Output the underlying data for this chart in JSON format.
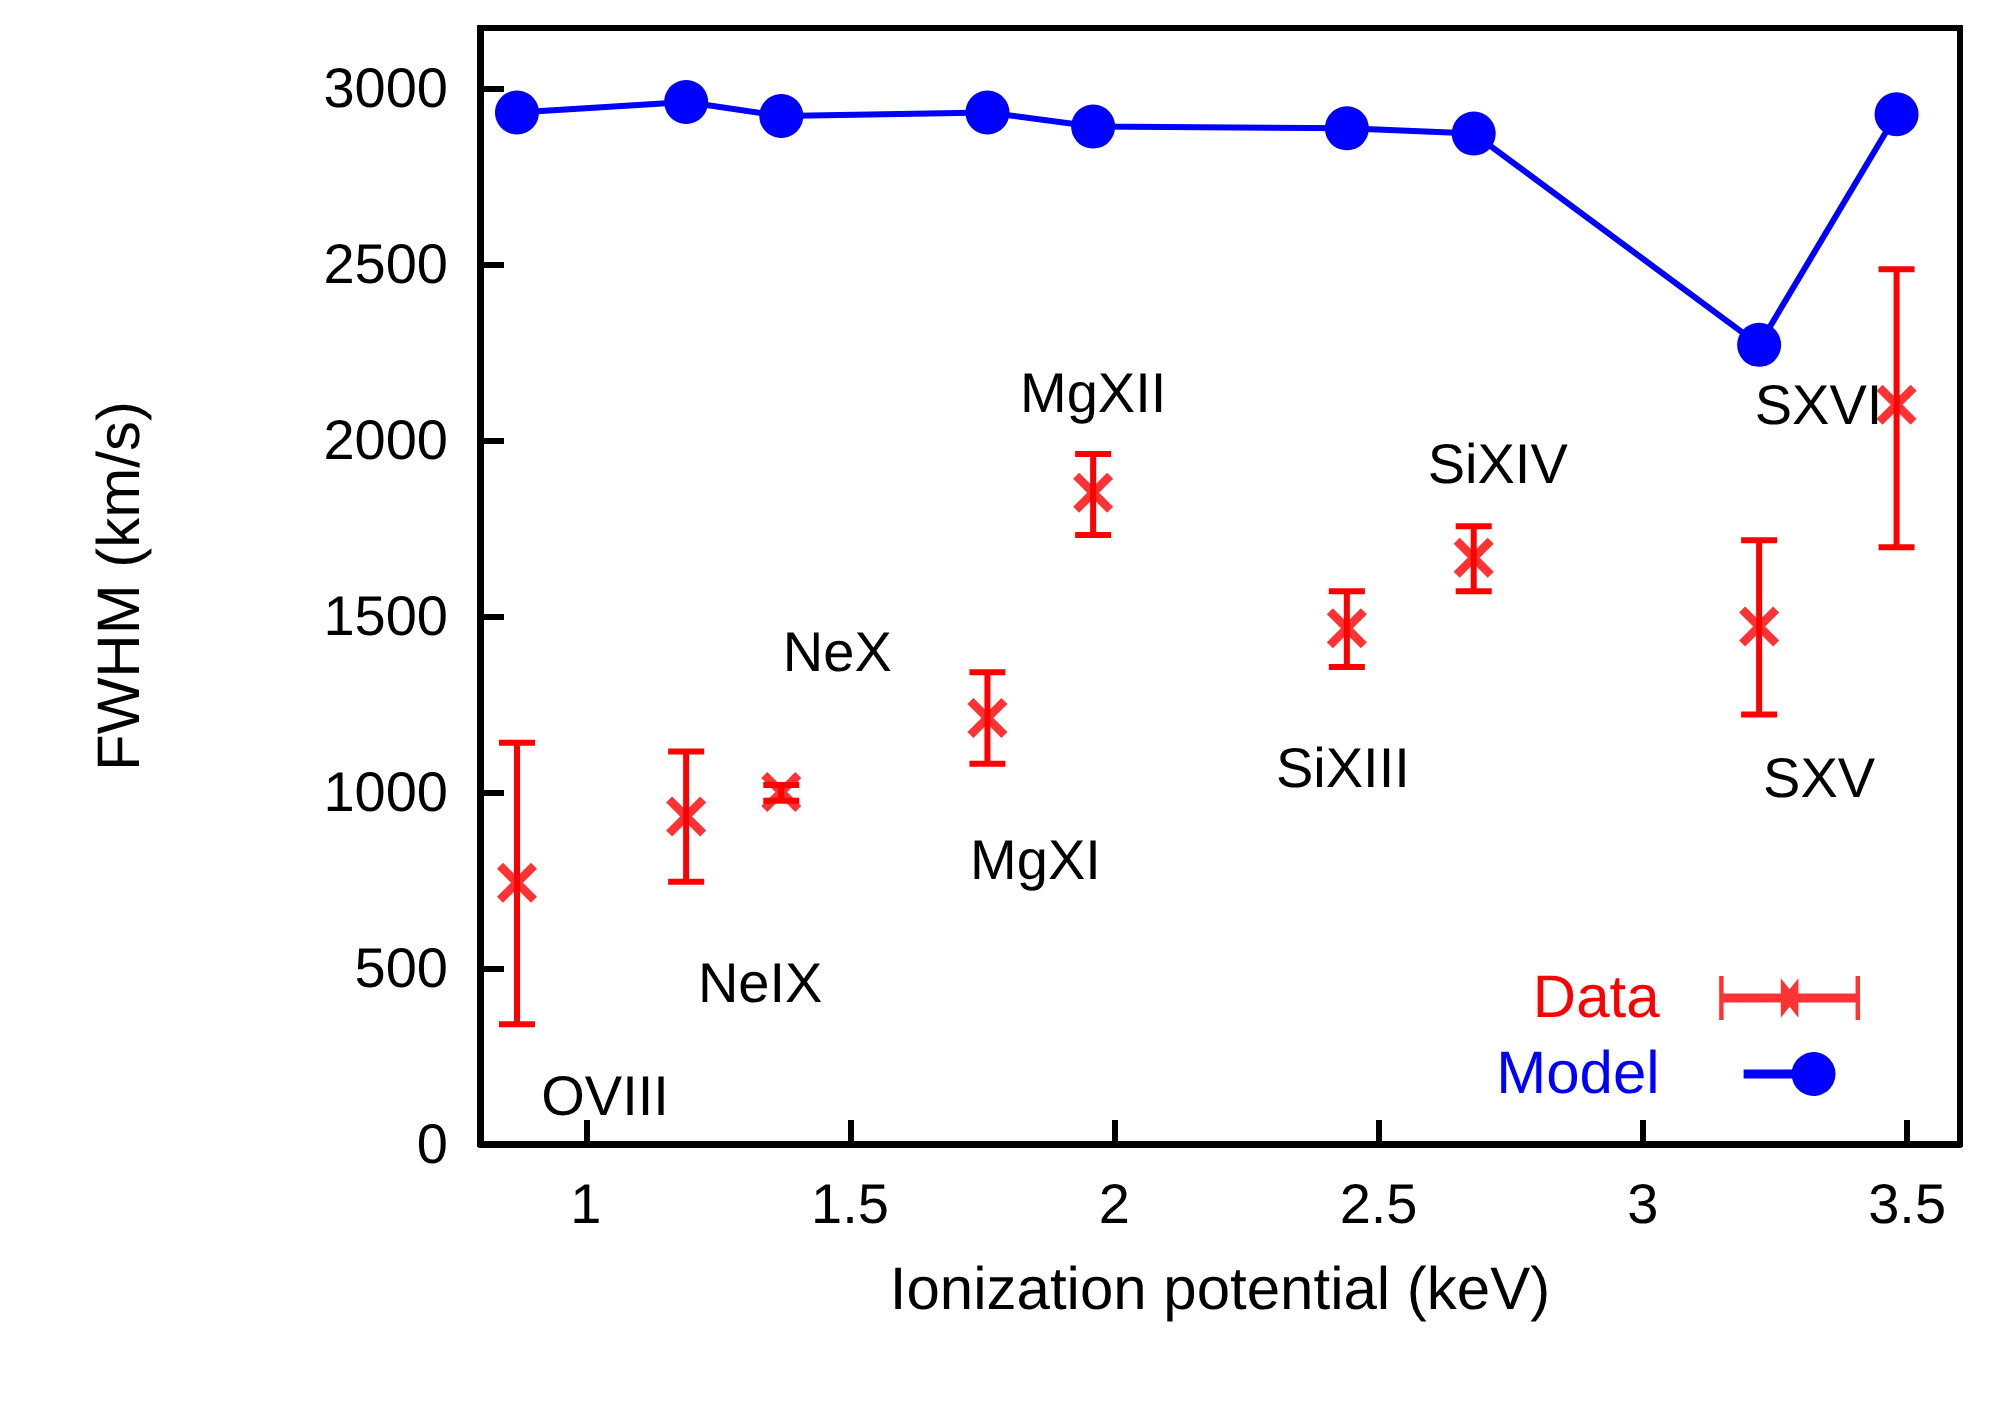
{
  "chart_data": {
    "type": "scatter",
    "xlabel": "Ionization potential (keV)",
    "ylabel": "FWHM (km/s)",
    "xlim": [
      0.8,
      3.6
    ],
    "xticks": [
      1,
      1.5,
      2,
      2.5,
      3,
      3.5
    ],
    "ylim": [
      0,
      3170
    ],
    "yticks": [
      0,
      500,
      1000,
      1500,
      2000,
      2500,
      3000
    ],
    "grid": false,
    "legend": "bottom right",
    "series": [
      {
        "name": "Data",
        "color": "#ff0000",
        "marker": "cross",
        "x": [
          0.87,
          1.19,
          1.37,
          1.76,
          1.96,
          2.44,
          2.68,
          3.22,
          3.48
        ],
        "values": [
          742,
          930,
          1000,
          1210,
          1850,
          1465,
          1665,
          1470,
          2100
        ],
        "errors": [
          [
            340,
            1140
          ],
          [
            745,
            1115
          ],
          [
            975,
            1020
          ],
          [
            1080,
            1340
          ],
          [
            1730,
            1960
          ],
          [
            1355,
            1570
          ],
          [
            1570,
            1755
          ],
          [
            1220,
            1715
          ],
          [
            1695,
            2485
          ]
        ]
      },
      {
        "name": "Model",
        "type": "line",
        "color": "#0000ff",
        "marker": "circle",
        "line_style": "solid",
        "x": [
          0.87,
          1.19,
          1.37,
          1.76,
          1.96,
          2.44,
          2.68,
          3.22,
          3.48
        ],
        "values": [
          2930,
          2960,
          2920,
          2930,
          2890,
          2885,
          2870,
          2270,
          2925
        ]
      }
    ],
    "annotations": [
      {
        "text": "OVIII",
        "x": 0.87,
        "y": 340
      },
      {
        "text": "NeIX",
        "x": 1.19,
        "y": 930
      },
      {
        "text": "NeX",
        "x": 1.37,
        "y": 1000
      },
      {
        "text": "MgXI",
        "x": 1.76,
        "y": 1210
      },
      {
        "text": "MgXII",
        "x": 1.96,
        "y": 1850
      },
      {
        "text": "SiXIII",
        "x": 2.44,
        "y": 1465
      },
      {
        "text": "SiXIV",
        "x": 2.68,
        "y": 1665
      },
      {
        "text": "SXV",
        "x": 3.22,
        "y": 1470
      },
      {
        "text": "SXVI",
        "x": 3.48,
        "y": 2100
      }
    ]
  }
}
